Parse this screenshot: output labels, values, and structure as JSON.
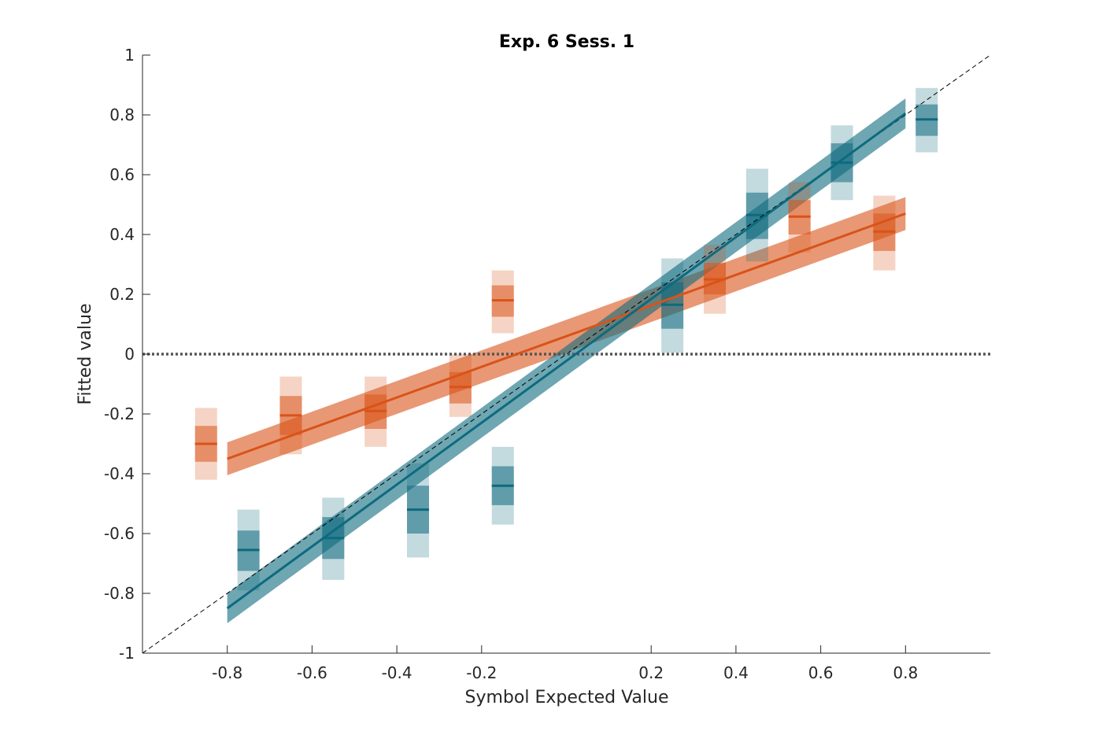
{
  "chart_data": {
    "type": "scatter",
    "title": "Exp. 6 Sess. 1",
    "xlabel": "Symbol Expected Value",
    "ylabel": "Fitted value",
    "xlim": [
      -1,
      1
    ],
    "ylim": [
      -1,
      1
    ],
    "x_ticks": [
      -0.8,
      -0.6,
      -0.4,
      -0.2,
      0.2,
      0.4,
      0.6,
      0.8
    ],
    "x_tick_labels": [
      "-0.8",
      "-0.6",
      "-0.4",
      "-0.2",
      "0.2",
      "0.4",
      "0.6",
      "0.8"
    ],
    "y_ticks": [
      1,
      0.8,
      0.6,
      0.4,
      0.2,
      0,
      -0.2,
      -0.4,
      -0.6,
      -0.8,
      -1
    ],
    "y_tick_labels": [
      "1",
      "0.8",
      "0.6",
      "0.4",
      "0.2",
      "0",
      "-0.2",
      "-0.4",
      "-0.6",
      "-0.8",
      "-1"
    ],
    "grid": false,
    "reference_lines": {
      "identity": {
        "style": "dashed",
        "color": "#000000"
      },
      "zero": {
        "y": 0,
        "style": "dotted",
        "color": "#555555"
      }
    },
    "series": [
      {
        "color": "#D95319",
        "x": [
          -0.85,
          -0.65,
          -0.45,
          -0.25,
          -0.15,
          0.35,
          0.55,
          0.75
        ],
        "y": [
          -0.3,
          -0.205,
          -0.19,
          -0.11,
          0.18,
          0.25,
          0.46,
          0.41
        ],
        "se_low": [
          -0.36,
          -0.27,
          -0.25,
          -0.165,
          0.125,
          0.2,
          0.4,
          0.345
        ],
        "se_high": [
          -0.24,
          -0.14,
          -0.135,
          -0.06,
          0.23,
          0.305,
          0.515,
          0.47
        ],
        "ci_low": [
          -0.42,
          -0.335,
          -0.31,
          -0.21,
          0.07,
          0.135,
          0.34,
          0.28
        ],
        "ci_high": [
          -0.18,
          -0.075,
          -0.075,
          0.0,
          0.28,
          0.365,
          0.575,
          0.53
        ],
        "fit": {
          "x": [
            -0.8,
            0.8
          ],
          "y": [
            -0.35,
            0.47
          ],
          "band_halfwidth": 0.055
        }
      },
      {
        "color": "#0E6A7E",
        "x": [
          -0.75,
          -0.55,
          -0.35,
          -0.15,
          0.25,
          0.45,
          0.65,
          0.85
        ],
        "y": [
          -0.655,
          -0.615,
          -0.52,
          -0.44,
          0.165,
          0.465,
          0.64,
          0.785
        ],
        "se_low": [
          -0.725,
          -0.685,
          -0.6,
          -0.505,
          0.085,
          0.385,
          0.575,
          0.73
        ],
        "se_high": [
          -0.59,
          -0.545,
          -0.44,
          -0.375,
          0.24,
          0.54,
          0.705,
          0.835
        ],
        "ci_low": [
          -0.79,
          -0.755,
          -0.68,
          -0.57,
          0.005,
          0.31,
          0.515,
          0.675
        ],
        "ci_high": [
          -0.52,
          -0.48,
          -0.365,
          -0.31,
          0.32,
          0.62,
          0.765,
          0.89
        ],
        "fit": {
          "x": [
            -0.8,
            0.8
          ],
          "y": [
            -0.85,
            0.805
          ],
          "band_halfwidth": 0.05
        }
      }
    ]
  }
}
